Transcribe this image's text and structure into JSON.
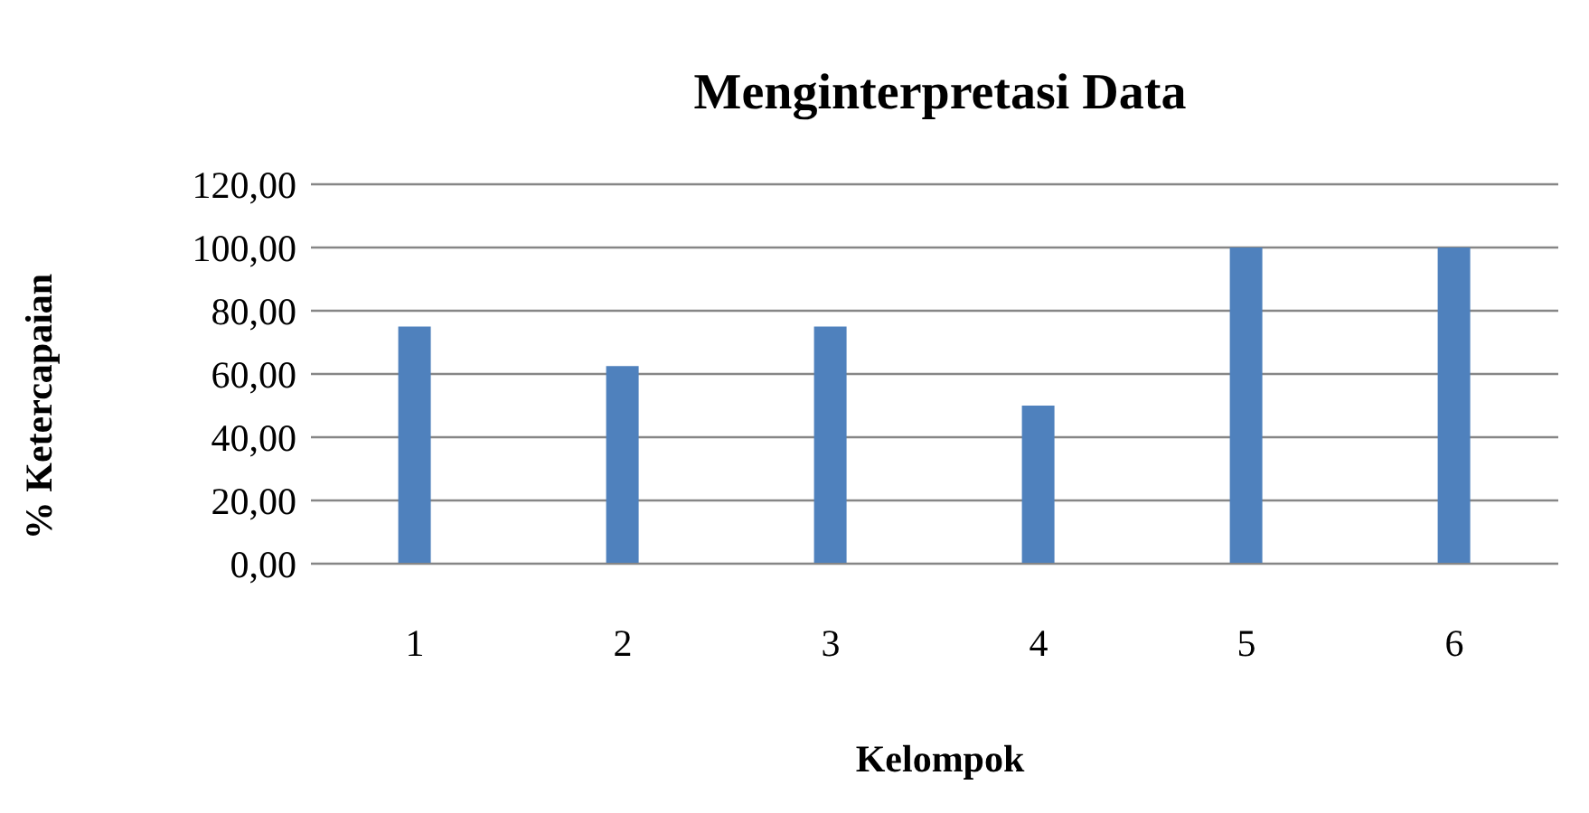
{
  "chart_data": {
    "type": "bar",
    "title": "Menginterpretasi Data",
    "xlabel": "Kelompok",
    "ylabel": "% Ketercapaian",
    "categories": [
      "1",
      "2",
      "3",
      "4",
      "5",
      "6"
    ],
    "values": [
      75,
      62.5,
      75,
      50,
      100,
      100
    ],
    "color": "#4f81bd",
    "ylim": [
      0,
      120
    ],
    "yticks": [
      {
        "value": 0,
        "label": "0,00"
      },
      {
        "value": 20,
        "label": "20,00"
      },
      {
        "value": 40,
        "label": "40,00"
      },
      {
        "value": 60,
        "label": "60,00"
      },
      {
        "value": 80,
        "label": "80,00"
      },
      {
        "value": 100,
        "label": "100,00"
      },
      {
        "value": 120,
        "label": "120,00"
      }
    ],
    "grid": "y",
    "legend": false
  }
}
